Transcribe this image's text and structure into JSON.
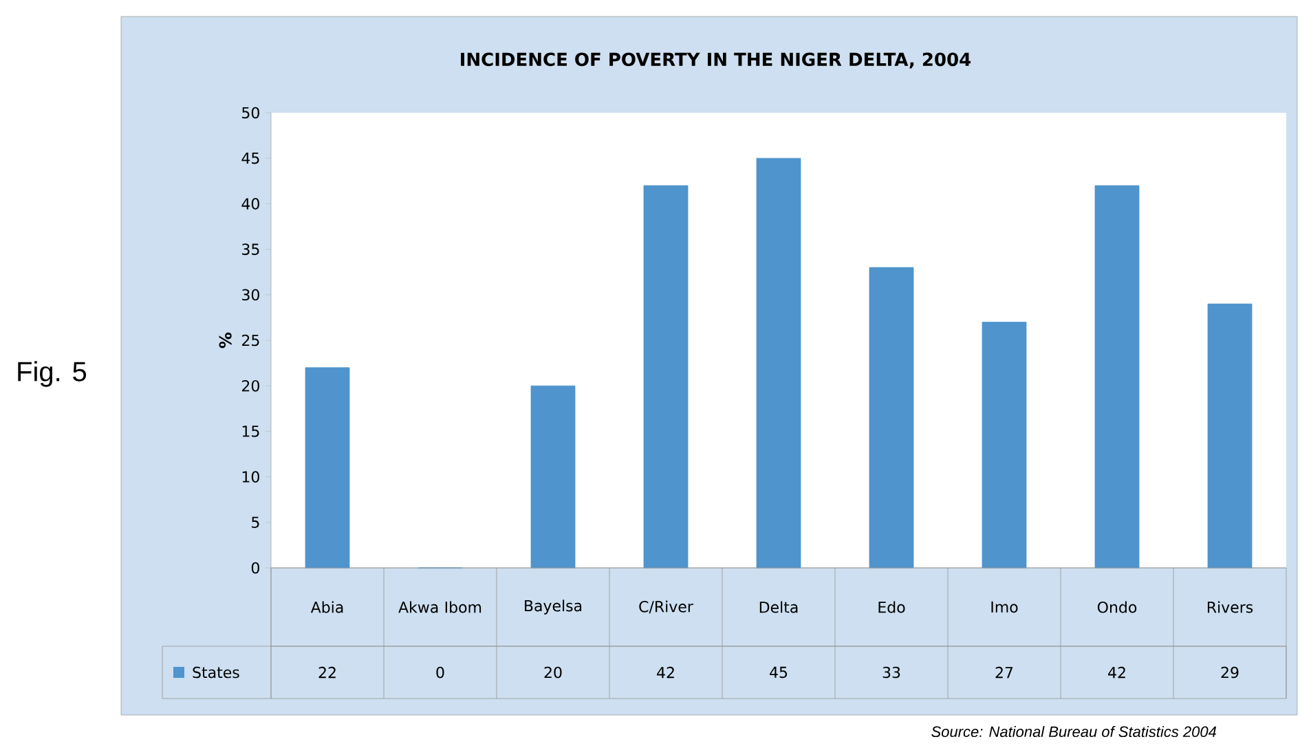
{
  "chart_data": {
    "type": "bar",
    "title": "INCIDENCE OF POVERTY IN THE NIGER DELTA, 2004",
    "ylabel": "%",
    "categories": [
      "Abia",
      "Akwa Ibom",
      "Bayelsa",
      "C/River",
      "Delta",
      "Edo",
      "Imo",
      "Ondo",
      "Rivers"
    ],
    "series": [
      {
        "name": "States",
        "color": "#4f94cd",
        "values": [
          22,
          0,
          20,
          42,
          45,
          33,
          27,
          42,
          29
        ]
      }
    ],
    "ylim": [
      0,
      50
    ],
    "yticks": [
      0,
      5,
      10,
      15,
      20,
      25,
      30,
      35,
      40,
      45,
      50
    ],
    "data_labels": true,
    "legend": "bottom",
    "annotations": [
      "Fig. 5",
      "Source: National Bureau of Statistics 2004"
    ]
  }
}
